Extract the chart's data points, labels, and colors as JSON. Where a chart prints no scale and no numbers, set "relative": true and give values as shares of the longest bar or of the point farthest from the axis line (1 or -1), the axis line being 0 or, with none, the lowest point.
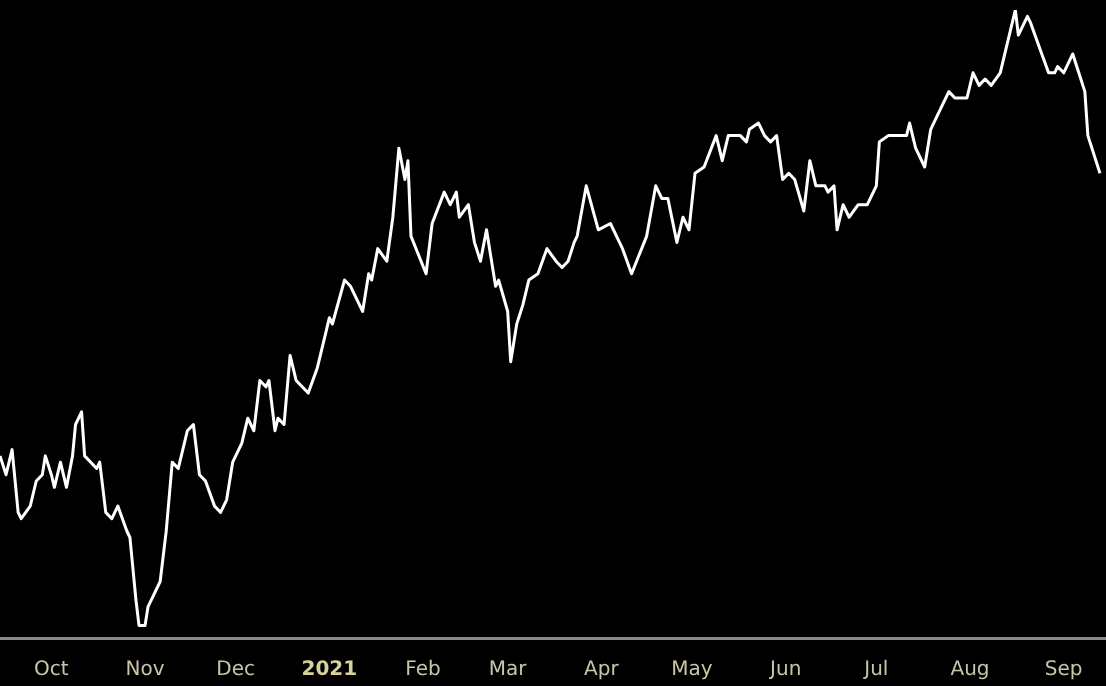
{
  "chart_data": {
    "type": "line",
    "relative": true,
    "x": [
      "2020-09-14",
      "2020-09-16",
      "2020-09-18",
      "2020-09-20",
      "2020-09-21",
      "2020-09-24",
      "2020-09-26",
      "2020-09-28",
      "2020-09-29",
      "2020-10-01",
      "2020-10-02",
      "2020-10-04",
      "2020-10-06",
      "2020-10-08",
      "2020-10-09",
      "2020-10-11",
      "2020-10-12",
      "2020-10-16",
      "2020-10-17",
      "2020-10-19",
      "2020-10-21",
      "2020-10-23",
      "2020-10-26",
      "2020-10-27",
      "2020-10-29",
      "2020-10-30",
      "2020-11-01",
      "2020-11-02",
      "2020-11-04",
      "2020-11-06",
      "2020-11-08",
      "2020-11-10",
      "2020-11-12",
      "2020-11-15",
      "2020-11-17",
      "2020-11-19",
      "2020-11-21",
      "2020-11-24",
      "2020-11-26",
      "2020-11-28",
      "2020-11-30",
      "2020-12-03",
      "2020-12-05",
      "2020-12-07",
      "2020-12-09",
      "2020-12-11",
      "2020-12-12",
      "2020-12-14",
      "2020-12-15",
      "2020-12-17",
      "2020-12-19",
      "2020-12-21",
      "2020-12-25",
      "2020-12-28",
      "2020-12-31",
      "2021-01-01",
      "2021-01-02",
      "2021-01-06",
      "2021-01-08",
      "2021-01-12",
      "2021-01-14",
      "2021-01-15",
      "2021-01-17",
      "2021-01-20",
      "2021-01-22",
      "2021-01-24",
      "2021-01-26",
      "2021-01-27",
      "2021-01-28",
      "2021-02-02",
      "2021-02-04",
      "2021-02-08",
      "2021-02-10",
      "2021-02-12",
      "2021-02-13",
      "2021-02-16",
      "2021-02-18",
      "2021-02-20",
      "2021-02-22",
      "2021-02-25",
      "2021-02-26",
      "2021-03-01",
      "2021-03-02",
      "2021-03-04",
      "2021-03-06",
      "2021-03-08",
      "2021-03-11",
      "2021-03-14",
      "2021-03-17",
      "2021-03-19",
      "2021-03-21",
      "2021-03-23",
      "2021-03-24",
      "2021-03-27",
      "2021-03-31",
      "2021-04-04",
      "2021-04-08",
      "2021-04-11",
      "2021-04-16",
      "2021-04-19",
      "2021-04-21",
      "2021-04-23",
      "2021-04-26",
      "2021-04-28",
      "2021-04-30",
      "2021-05-02",
      "2021-05-05",
      "2021-05-09",
      "2021-05-11",
      "2021-05-13",
      "2021-05-17",
      "2021-05-19",
      "2021-05-20",
      "2021-05-23",
      "2021-05-25",
      "2021-05-27",
      "2021-05-29",
      "2021-05-31",
      "2021-06-02",
      "2021-06-04",
      "2021-06-07",
      "2021-06-09",
      "2021-06-11",
      "2021-06-14",
      "2021-06-15",
      "2021-06-17",
      "2021-06-18",
      "2021-06-20",
      "2021-06-22",
      "2021-06-25",
      "2021-06-28",
      "2021-07-01",
      "2021-07-02",
      "2021-07-05",
      "2021-07-07",
      "2021-07-08",
      "2021-07-11",
      "2021-07-12",
      "2021-07-14",
      "2021-07-17",
      "2021-07-19",
      "2021-07-23",
      "2021-07-25",
      "2021-07-27",
      "2021-07-31",
      "2021-08-02",
      "2021-08-04",
      "2021-08-06",
      "2021-08-08",
      "2021-08-11",
      "2021-08-13",
      "2021-08-16",
      "2021-08-17",
      "2021-08-20",
      "2021-08-21",
      "2021-08-24",
      "2021-08-27",
      "2021-08-29",
      "2021-08-30",
      "2021-09-01",
      "2021-09-04",
      "2021-09-06",
      "2021-09-08",
      "2021-09-09",
      "2021-09-13"
    ],
    "series": [
      {
        "color": "#ffffff",
        "values": [
          0.29,
          0.26,
          0.3,
          0.2,
          0.19,
          0.21,
          0.25,
          0.26,
          0.29,
          0.26,
          0.24,
          0.28,
          0.24,
          0.29,
          0.34,
          0.36,
          0.29,
          0.27,
          0.28,
          0.2,
          0.19,
          0.21,
          0.17,
          0.16,
          0.06,
          0.02,
          0.02,
          0.05,
          0.07,
          0.09,
          0.17,
          0.28,
          0.27,
          0.33,
          0.34,
          0.26,
          0.25,
          0.21,
          0.2,
          0.22,
          0.28,
          0.31,
          0.35,
          0.33,
          0.41,
          0.4,
          0.41,
          0.33,
          0.35,
          0.34,
          0.45,
          0.41,
          0.39,
          0.43,
          0.49,
          0.51,
          0.5,
          0.57,
          0.56,
          0.52,
          0.58,
          0.57,
          0.62,
          0.6,
          0.67,
          0.78,
          0.73,
          0.76,
          0.64,
          0.58,
          0.66,
          0.71,
          0.69,
          0.71,
          0.67,
          0.69,
          0.63,
          0.6,
          0.65,
          0.56,
          0.57,
          0.52,
          0.44,
          0.5,
          0.53,
          0.57,
          0.58,
          0.62,
          0.6,
          0.59,
          0.6,
          0.63,
          0.64,
          0.72,
          0.65,
          0.66,
          0.62,
          0.58,
          0.64,
          0.72,
          0.7,
          0.7,
          0.63,
          0.67,
          0.65,
          0.74,
          0.75,
          0.8,
          0.76,
          0.8,
          0.8,
          0.79,
          0.81,
          0.82,
          0.8,
          0.79,
          0.8,
          0.73,
          0.74,
          0.73,
          0.68,
          0.76,
          0.72,
          0.72,
          0.71,
          0.72,
          0.65,
          0.69,
          0.67,
          0.69,
          0.69,
          0.72,
          0.79,
          0.8,
          0.8,
          0.8,
          0.8,
          0.82,
          0.78,
          0.75,
          0.81,
          0.85,
          0.87,
          0.86,
          0.86,
          0.9,
          0.88,
          0.89,
          0.88,
          0.9,
          0.94,
          1,
          0.96,
          0.99,
          0.98,
          0.94,
          0.9,
          0.9,
          0.91,
          0.9,
          0.93,
          0.9,
          0.87,
          0.8,
          0.74
        ]
      }
    ],
    "xlim": [
      "2020-09-14",
      "2021-09-15"
    ],
    "xticks": [
      {
        "value": "2020-10-01",
        "label": "Oct"
      },
      {
        "value": "2020-11-01",
        "label": "Nov"
      },
      {
        "value": "2020-12-01",
        "label": "Dec"
      },
      {
        "value": "2021-01-01",
        "label": "2021"
      },
      {
        "value": "2021-02-01",
        "label": "Feb"
      },
      {
        "value": "2021-03-01",
        "label": "Mar"
      },
      {
        "value": "2021-04-01",
        "label": "Apr"
      },
      {
        "value": "2021-05-01",
        "label": "May"
      },
      {
        "value": "2021-06-01",
        "label": "Jun"
      },
      {
        "value": "2021-07-01",
        "label": "Jul"
      },
      {
        "value": "2021-08-01",
        "label": "Aug"
      },
      {
        "value": "2021-09-01",
        "label": "Sep"
      }
    ],
    "tick_labels": "x"
  }
}
